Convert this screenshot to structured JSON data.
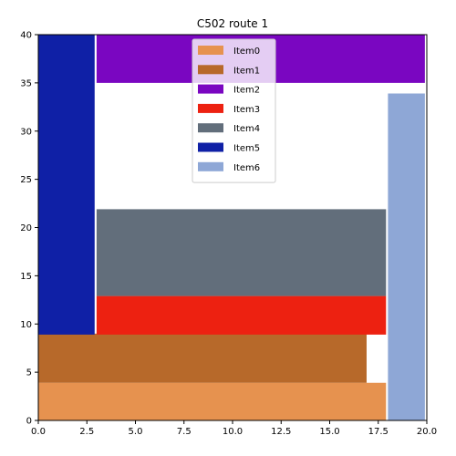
{
  "chart_data": {
    "type": "bar",
    "title": "C502 route 1",
    "xlabel": "",
    "ylabel": "",
    "xlim": [
      0,
      20
    ],
    "ylim": [
      0,
      40
    ],
    "xticks": [
      "0.0",
      "2.5",
      "5.0",
      "7.5",
      "10.0",
      "12.5",
      "15.0",
      "17.5",
      "20.0"
    ],
    "yticks": [
      "0",
      "5",
      "10",
      "15",
      "20",
      "25",
      "30",
      "35",
      "40"
    ],
    "grid": false,
    "legend_position": "top-center",
    "items": [
      {
        "name": "Item0",
        "color": "#e6924f",
        "x": 0.0,
        "y": 0.0,
        "width": 17.9,
        "height": 3.9
      },
      {
        "name": "Item1",
        "color": "#b7692a",
        "x": 0.0,
        "y": 3.9,
        "width": 16.9,
        "height": 5.1
      },
      {
        "name": "Item2",
        "color": "#7a06c1",
        "x": 3.0,
        "y": 35.0,
        "width": 16.9,
        "height": 5.0
      },
      {
        "name": "Item3",
        "color": "#ed2111",
        "x": 3.0,
        "y": 8.9,
        "width": 14.9,
        "height": 4.0
      },
      {
        "name": "Item4",
        "color": "#626e7b",
        "x": 3.0,
        "y": 12.9,
        "width": 14.9,
        "height": 9.0
      },
      {
        "name": "Item5",
        "color": "#0f20a6",
        "x": 0.0,
        "y": 8.9,
        "width": 2.9,
        "height": 31.1
      },
      {
        "name": "Item6",
        "color": "#8ea7d6",
        "x": 18.0,
        "y": 0.0,
        "width": 1.9,
        "height": 33.9
      }
    ]
  }
}
